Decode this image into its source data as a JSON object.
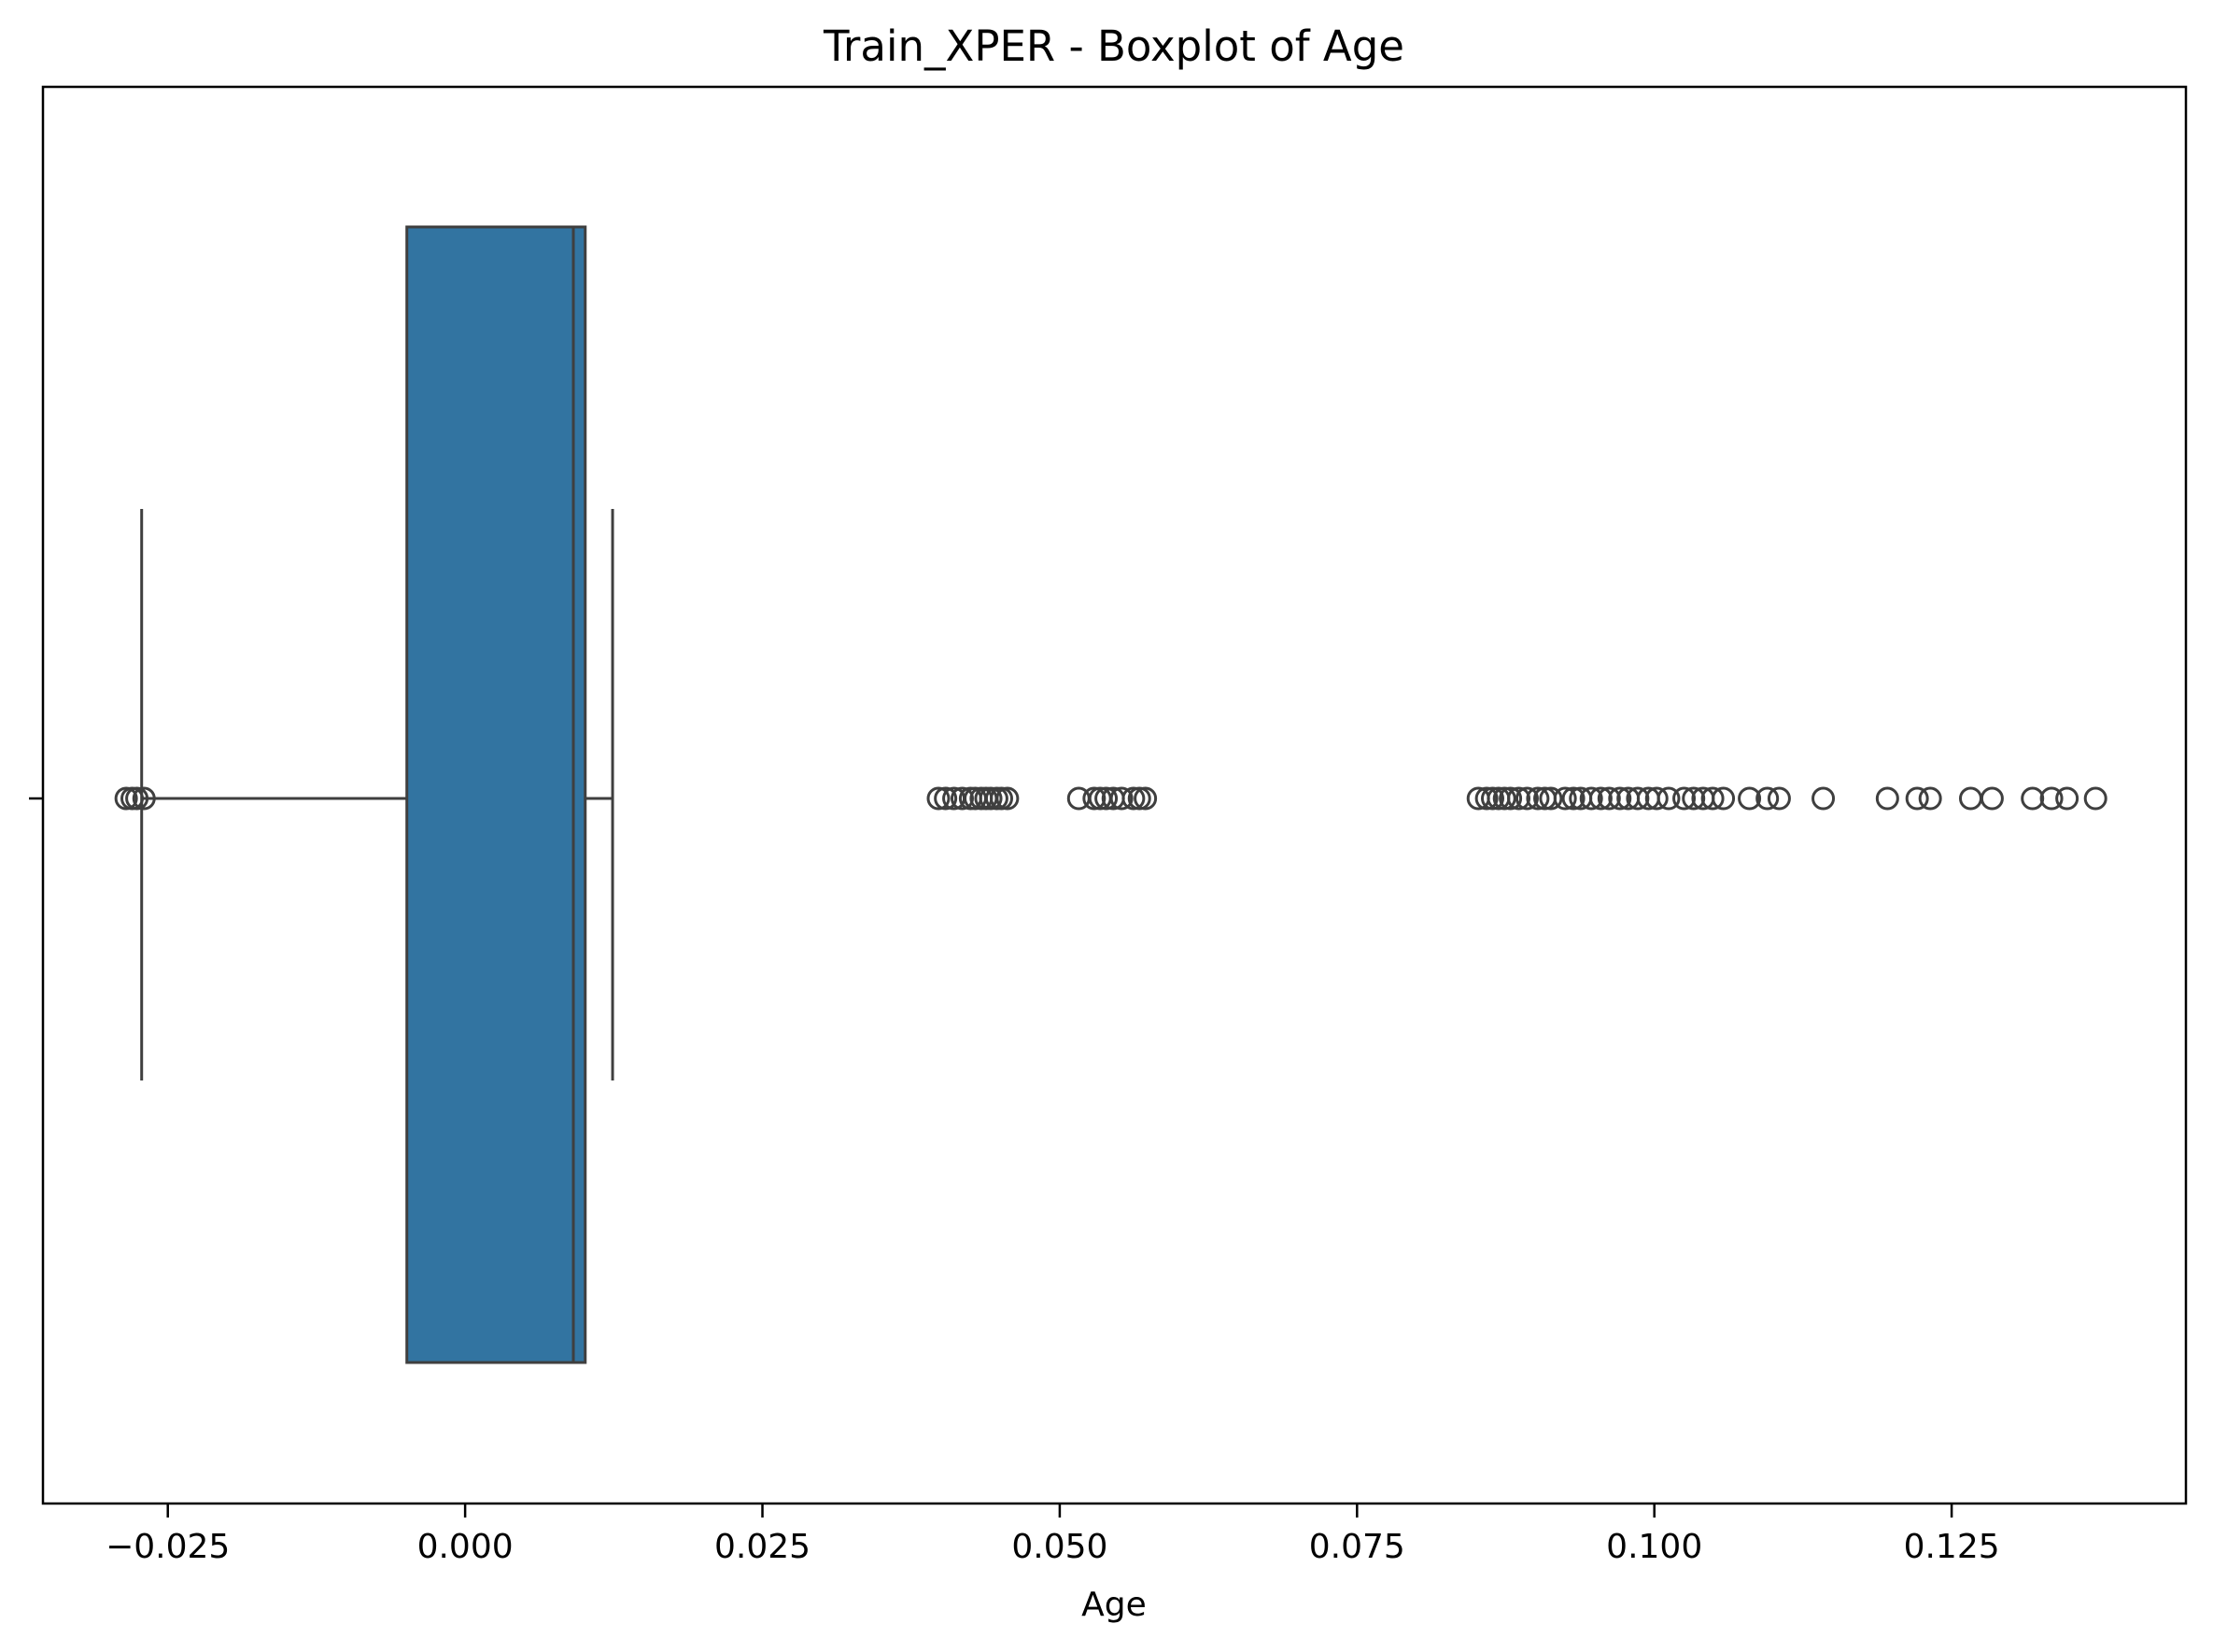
{
  "chart_data": {
    "type": "boxplot",
    "title": "Train_XPER - Boxplot of Age",
    "xlabel": "Age",
    "ylabel": "",
    "orientation": "horizontal",
    "xlim": [
      -0.0355,
      0.1447
    ],
    "xticks": [
      {
        "value": -0.025,
        "label": "−0.025"
      },
      {
        "value": 0.0,
        "label": "0.000"
      },
      {
        "value": 0.025,
        "label": "0.025"
      },
      {
        "value": 0.05,
        "label": "0.050"
      },
      {
        "value": 0.075,
        "label": "0.075"
      },
      {
        "value": 0.1,
        "label": "0.100"
      },
      {
        "value": 0.125,
        "label": "0.125"
      }
    ],
    "box": {
      "whisker_low": -0.0272,
      "q1": -0.0049,
      "median": 0.0091,
      "q3": 0.0101,
      "whisker_high": 0.0124
    },
    "outliers": [
      -0.0285,
      -0.028,
      -0.0276,
      -0.027,
      0.0398,
      0.0404,
      0.0411,
      0.0418,
      0.0425,
      0.0429,
      0.0434,
      0.0438,
      0.0442,
      0.0447,
      0.0451,
      0.0456,
      0.0516,
      0.0529,
      0.0534,
      0.0539,
      0.0545,
      0.0552,
      0.0562,
      0.0567,
      0.0572,
      0.0852,
      0.0859,
      0.0864,
      0.0869,
      0.0874,
      0.0879,
      0.0886,
      0.0893,
      0.0902,
      0.0908,
      0.0913,
      0.0925,
      0.0932,
      0.0938,
      0.0947,
      0.0955,
      0.0962,
      0.0971,
      0.0978,
      0.0986,
      0.0995,
      0.1002,
      0.1012,
      0.1025,
      0.1033,
      0.1041,
      0.1049,
      0.1058,
      0.108,
      0.1095,
      0.1105,
      0.1142,
      0.1196,
      0.1221,
      0.1232,
      0.1266,
      0.1284,
      0.1318,
      0.1334,
      0.1347,
      0.1371
    ],
    "colors": {
      "box_fill": "#3274a1",
      "line": "#3f3f3f",
      "outlier_edge": "#3f3f3f"
    },
    "grid": false,
    "legend": "none"
  }
}
